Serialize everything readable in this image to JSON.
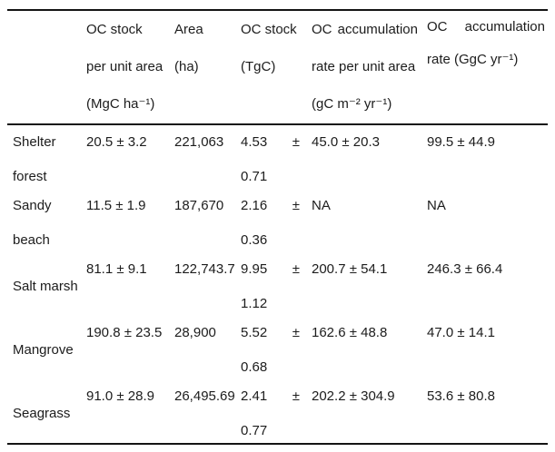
{
  "colors": {
    "background": "#ffffff",
    "text": "#1c1c1c",
    "rule": "#141414"
  },
  "table": {
    "header_lines": [
      [],
      [
        "OC stock",
        "per unit area",
        "(MgC ha⁻¹)"
      ],
      [
        "Area",
        "(ha)"
      ],
      [
        "OC stock",
        "(TgC)"
      ],
      [
        "OC accumulation",
        "rate per unit area",
        "(gC m⁻² yr⁻¹)"
      ],
      [
        "OC accumulation",
        "rate (GgC yr⁻¹)"
      ]
    ],
    "rows": [
      {
        "habitat": "Shelter forest",
        "values": [
          "20.5 ± 3.2",
          "221,063",
          "4.53 ± 0.71",
          "45.0 ± 20.3",
          "99.5 ± 44.9"
        ]
      },
      {
        "habitat": "Sandy beach",
        "values": [
          "11.5 ± 1.9",
          "187,670",
          "2.16 ± 0.36",
          "NA",
          "NA"
        ]
      },
      {
        "habitat": "Salt marsh",
        "values": [
          "81.1 ± 9.1",
          "122,743.7",
          "9.95 ± 1.12",
          "200.7 ± 54.1",
          "246.3 ± 66.4"
        ]
      },
      {
        "habitat": "Mangrove",
        "values": [
          "190.8 ± 23.5",
          "28,900",
          "5.52 ± 0.68",
          "162.6 ± 48.8",
          "47.0 ± 14.1"
        ]
      },
      {
        "habitat": "Seagrass",
        "values": [
          "91.0 ± 28.9",
          "26,495.69",
          "2.41 ± 0.77",
          "202.2 ± 304.9",
          "53.6 ± 80.8"
        ]
      }
    ]
  }
}
